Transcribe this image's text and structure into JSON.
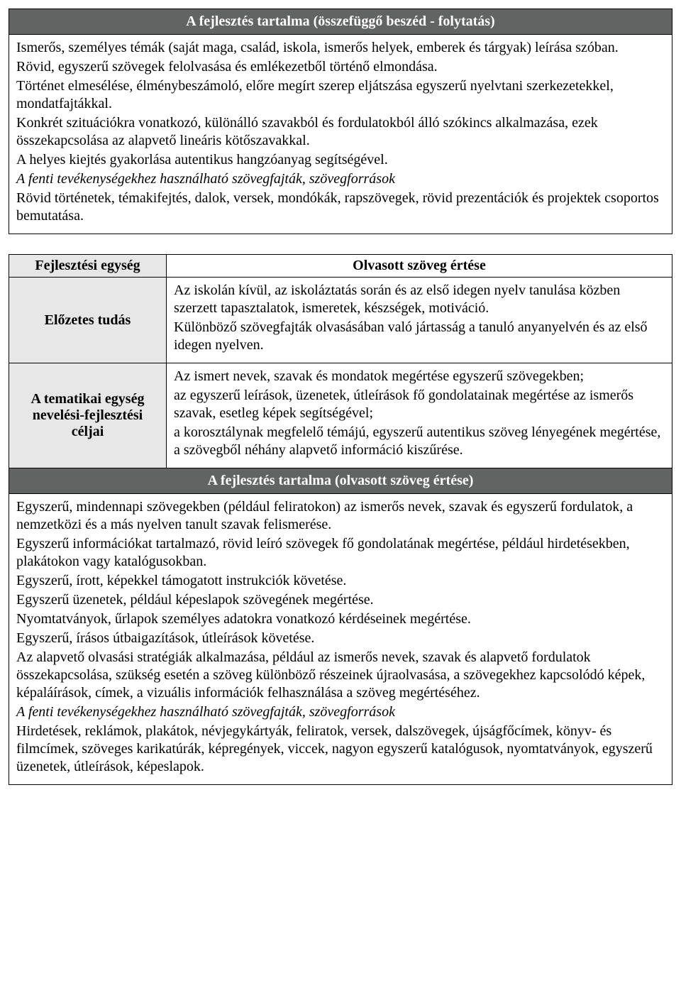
{
  "table1": {
    "header": "A fejlesztés tartalma (összefüggő beszéd - folytatás)",
    "body": {
      "p1": "Ismerős, személyes témák (saját maga, család, iskola, ismerős helyek, emberek és tárgyak) leírása szóban.",
      "p2": "Rövid, egyszerű szövegek felolvasása és emlékezetből történő elmondása.",
      "p3": "Történet elmesélése, élménybeszámoló, előre megírt szerep eljátszása egyszerű nyelvtani szerkezetekkel, mondatfajtákkal.",
      "p4": "Konkrét szituációkra vonatkozó, különálló szavakból és fordulatokból álló szókincs alkalmazása, ezek összekapcsolása az alapvető lineáris kötőszavakkal.",
      "p5": "A helyes kiejtés gyakorlása autentikus hangzóanyag segítségével.",
      "p6": "A fenti tevékenységekhez használható szövegfajták, szövegforrások",
      "p7": "Rövid történetek, témakifejtés, dalok, versek, mondókák, rapszövegek, rövid prezentációk és projektek csoportos bemutatása."
    }
  },
  "table2": {
    "row1": {
      "left": "Fejlesztési egység",
      "right": "Olvasott szöveg értése"
    },
    "row2": {
      "left": "Előzetes tudás",
      "p1": "Az iskolán kívül, az iskoláztatás során és az első idegen nyelv tanulása közben szerzett tapasztalatok, ismeretek, készségek, motiváció.",
      "p2": "Különböző szövegfajták olvasásában való jártasság a tanuló anyanyelvén és az első idegen nyelven."
    },
    "row3": {
      "left": "A tematikai egység nevelési-fejlesztési céljai",
      "p1": "Az ismert nevek, szavak és mondatok megértése egyszerű szövegekben;",
      "p2": "az egyszerű leírások, üzenetek, útleírások fő gondolatainak megértése az ismerős szavak, esetleg képek segítségével;",
      "p3": "a korosztálynak megfelelő témájú, egyszerű autentikus szöveg lényegének megértése, a szövegből néhány alapvető információ kiszűrése."
    },
    "header2": "A fejlesztés tartalma (olvasott szöveg értése)",
    "body": {
      "p1": "Egyszerű, mindennapi szövegekben (például feliratokon) az ismerős nevek, szavak és egyszerű fordulatok, a nemzetközi és a más nyelven tanult szavak felismerése.",
      "p2": "Egyszerű információkat tartalmazó, rövid leíró szövegek fő gondolatának megértése, például hirdetésekben, plakátokon vagy katalógusokban.",
      "p3": "Egyszerű, írott, képekkel támogatott instrukciók követése.",
      "p4": "Egyszerű üzenetek, például képeslapok szövegének megértése.",
      "p5": "Nyomtatványok, űrlapok személyes adatokra vonatkozó kérdéseinek megértése.",
      "p6": "Egyszerű, írásos útbaigazítások, útleírások követése.",
      "p7": "Az alapvető olvasási stratégiák alkalmazása, például az ismerős nevek, szavak és alapvető fordulatok összekapcsolása, szükség esetén a szöveg különböző részeinek újraolvasása, a szövegekhez kapcsolódó képek, képaláírások, címek, a vizuális információk felhasználása a szöveg megértéséhez.",
      "p8": "A fenti tevékenységekhez használható szövegfajták, szövegforrások",
      "p9": "Hirdetések, reklámok, plakátok, névjegykártyák, feliratok, versek, dalszövegek, újságfőcímek, könyv- és filmcímek, szöveges karikatúrák, képregények, viccek, nagyon egyszerű katalógusok, nyomtatványok, egyszerű üzenetek, útleírások, képeslapok."
    }
  }
}
